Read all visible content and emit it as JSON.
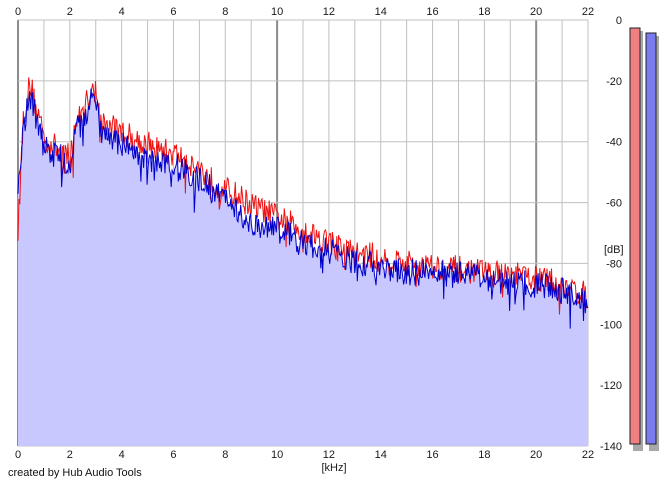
{
  "chart_data": {
    "type": "area",
    "xlabel": "[kHz]",
    "ylabel": "[dB]",
    "xlim": [
      0,
      22
    ],
    "ylim": [
      -140,
      0
    ],
    "x_ticks": [
      0,
      2,
      4,
      6,
      8,
      10,
      12,
      14,
      16,
      18,
      20,
      22
    ],
    "x_tick_labels": [
      "0",
      "2",
      "4",
      "6",
      "8",
      "10",
      "12",
      "14",
      "16",
      "18",
      "20",
      "22"
    ],
    "y_ticks": [
      0,
      -20,
      -40,
      -60,
      -80,
      -100,
      -120,
      -140
    ],
    "y_tick_labels": [
      "0",
      "-20",
      "-40",
      "-60",
      "-80",
      "-100",
      "-120",
      "-140"
    ],
    "grid": true,
    "series": [
      {
        "color": "#ee1111",
        "x": [
          0.0,
          0.2,
          0.4,
          0.5,
          0.7,
          0.9,
          1.0,
          1.3,
          1.6,
          1.8,
          2.0,
          2.2,
          2.5,
          2.8,
          2.9,
          3.2,
          3.5,
          4.0,
          4.5,
          5.0,
          5.5,
          6.0,
          6.5,
          7.0,
          7.5,
          8.0,
          8.5,
          9.0,
          9.5,
          10.0,
          10.5,
          11.0,
          11.5,
          12.0,
          12.5,
          13.0,
          14.0,
          15.0,
          16.0,
          17.0,
          18.0,
          19.0,
          20.0,
          21.0,
          21.5,
          22.0
        ],
        "y": [
          -68,
          -32,
          -22,
          -21,
          -28,
          -33,
          -38,
          -40,
          -42,
          -42,
          -45,
          -33,
          -30,
          -22,
          -18,
          -33,
          -34,
          -36,
          -38,
          -40,
          -42,
          -43,
          -45,
          -48,
          -52,
          -55,
          -57,
          -60,
          -62,
          -64,
          -66,
          -68,
          -70,
          -72,
          -74,
          -76,
          -77,
          -79,
          -80,
          -81,
          -82,
          -83,
          -84,
          -86,
          -88,
          -90
        ]
      },
      {
        "color": "#0000cc",
        "x": [
          0.0,
          0.2,
          0.4,
          0.5,
          0.7,
          0.9,
          1.0,
          1.3,
          1.6,
          1.8,
          2.0,
          2.2,
          2.5,
          2.8,
          2.9,
          3.2,
          3.5,
          4.0,
          4.5,
          5.0,
          5.5,
          6.0,
          6.5,
          7.0,
          7.5,
          8.0,
          8.5,
          9.0,
          9.5,
          10.0,
          10.5,
          11.0,
          11.5,
          12.0,
          12.5,
          13.0,
          14.0,
          15.0,
          16.0,
          17.0,
          18.0,
          19.0,
          20.0,
          21.0,
          21.5,
          22.0
        ],
        "y": [
          -52,
          -35,
          -25,
          -24,
          -31,
          -37,
          -41,
          -43,
          -44,
          -45,
          -48,
          -35,
          -33,
          -26,
          -23,
          -36,
          -38,
          -40,
          -42,
          -44,
          -46,
          -47,
          -49,
          -51,
          -55,
          -58,
          -62,
          -67,
          -66,
          -68,
          -70,
          -73,
          -74,
          -75,
          -77,
          -79,
          -80,
          -82,
          -82,
          -83,
          -84,
          -85,
          -86,
          -88,
          -90,
          -92
        ]
      }
    ]
  },
  "meters": [
    {
      "color": "#f08080"
    },
    {
      "color": "#7b7bf0"
    }
  ],
  "colors": {
    "fill": "#c8c8ff",
    "grid_major": "#8c8c8c",
    "grid_minor": "#c0c0c0"
  },
  "footer": {
    "credit": "created by Hub Audio Tools"
  }
}
